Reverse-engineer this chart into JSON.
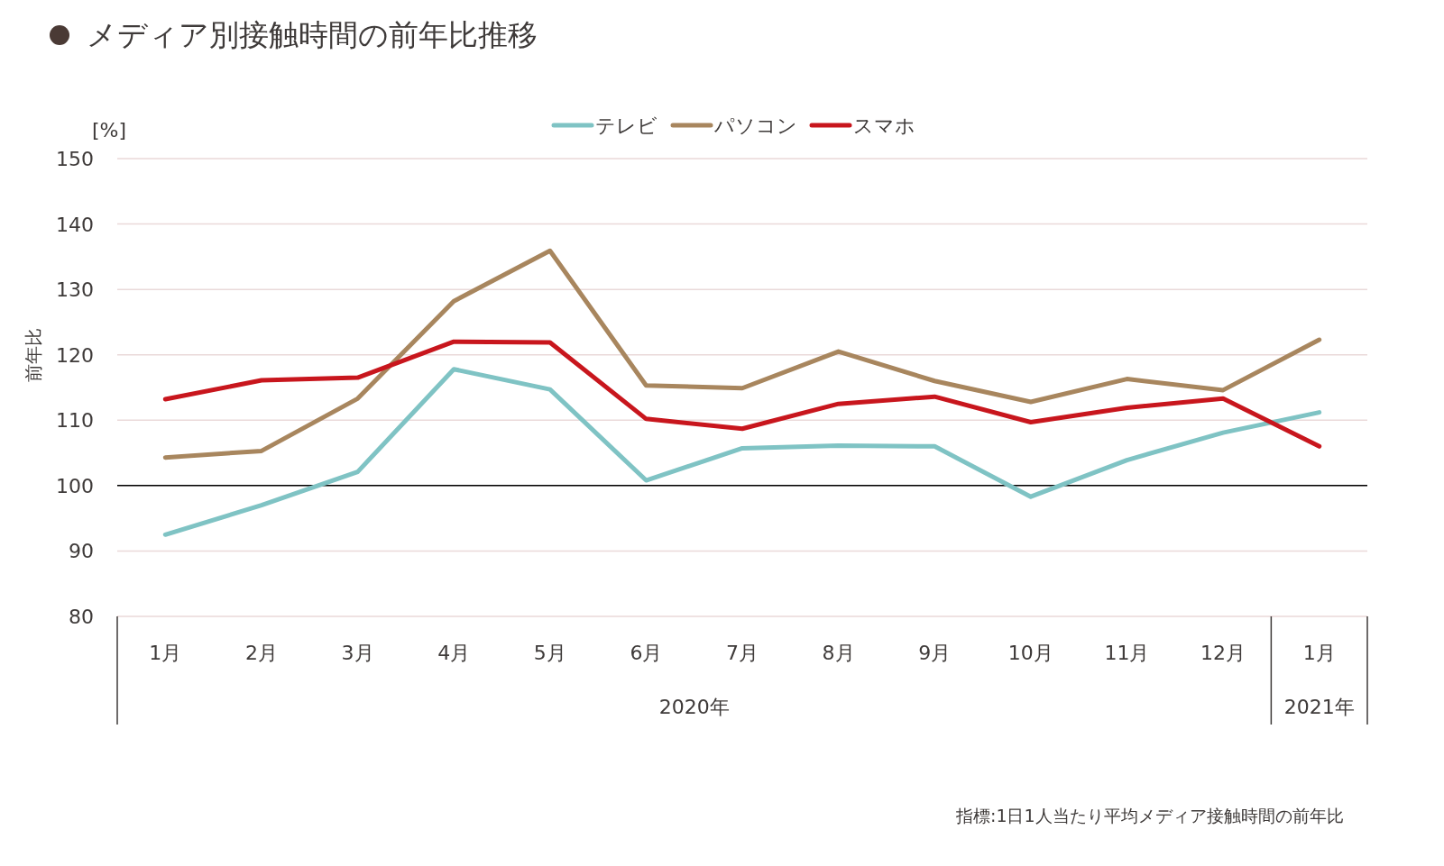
{
  "chart_data": {
    "type": "line",
    "title": "メディア別接触時間の前年比推移",
    "ylabel": "前年比",
    "annotations": [
      "[%]",
      "2020年",
      "2021年",
      "指標:1日1人当たり平均メディア接触時間の前年比"
    ],
    "categories": [
      "1月",
      "2月",
      "3月",
      "4月",
      "5月",
      "6月",
      "7月",
      "8月",
      "9月",
      "10月",
      "11月",
      "12月",
      "1月"
    ],
    "series": [
      {
        "name": "テレビ",
        "color": "#7fc3c4",
        "values": [
          92.5,
          97,
          102.1,
          117.8,
          114.7,
          100.8,
          105.7,
          106.1,
          106.0,
          98.3,
          103.9,
          108.1,
          111.2
        ]
      },
      {
        "name": "パソコン",
        "color": "#a8865e",
        "values": [
          104.3,
          105.3,
          113.3,
          128.2,
          135.9,
          115.3,
          114.9,
          120.5,
          116.0,
          112.8,
          116.3,
          114.6,
          122.3
        ]
      },
      {
        "name": "スマホ",
        "color": "#c8161d",
        "values": [
          113.2,
          116.1,
          116.5,
          122.0,
          121.9,
          110.2,
          108.7,
          112.5,
          113.6,
          109.7,
          111.9,
          113.3,
          106.0
        ]
      }
    ],
    "ylim": [
      80,
      150
    ],
    "yticks": [
      80,
      90,
      100,
      110,
      120,
      130,
      140,
      150
    ],
    "ref_lines": [
      {
        "axis": "y",
        "value": 100,
        "color": "#000000"
      }
    ],
    "grid": "y",
    "legend": "top",
    "marker": "none",
    "line_style": "solid"
  }
}
